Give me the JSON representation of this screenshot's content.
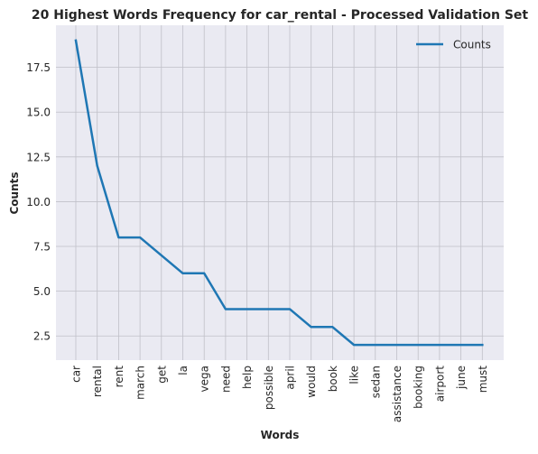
{
  "chart_data": {
    "type": "line",
    "title": "20 Highest Words Frequency for car_rental - Processed Validation Set",
    "xlabel": "Words",
    "ylabel": "Counts",
    "categories": [
      "car",
      "rental",
      "rent",
      "march",
      "get",
      "la",
      "vega",
      "need",
      "help",
      "possible",
      "april",
      "would",
      "book",
      "like",
      "sedan",
      "assistance",
      "booking",
      "airport",
      "june",
      "must"
    ],
    "series": [
      {
        "name": "Counts",
        "values": [
          19,
          12,
          8,
          8,
          7,
          6,
          6,
          4,
          4,
          4,
          4,
          3,
          3,
          2,
          2,
          2,
          2,
          2,
          2,
          2
        ]
      }
    ],
    "ylim": [
      1.15,
      19.85
    ],
    "yticks": [
      2.5,
      5.0,
      7.5,
      10.0,
      12.5,
      15.0,
      17.5
    ],
    "ytick_labels": [
      "2.5",
      "5.0",
      "7.5",
      "10.0",
      "12.5",
      "15.0",
      "17.5"
    ],
    "grid": true,
    "legend_position": "top-right",
    "colors": {
      "line": "#1f77b4",
      "axes_background": "#eaeaf2",
      "grid": "#c0c0c8"
    }
  }
}
